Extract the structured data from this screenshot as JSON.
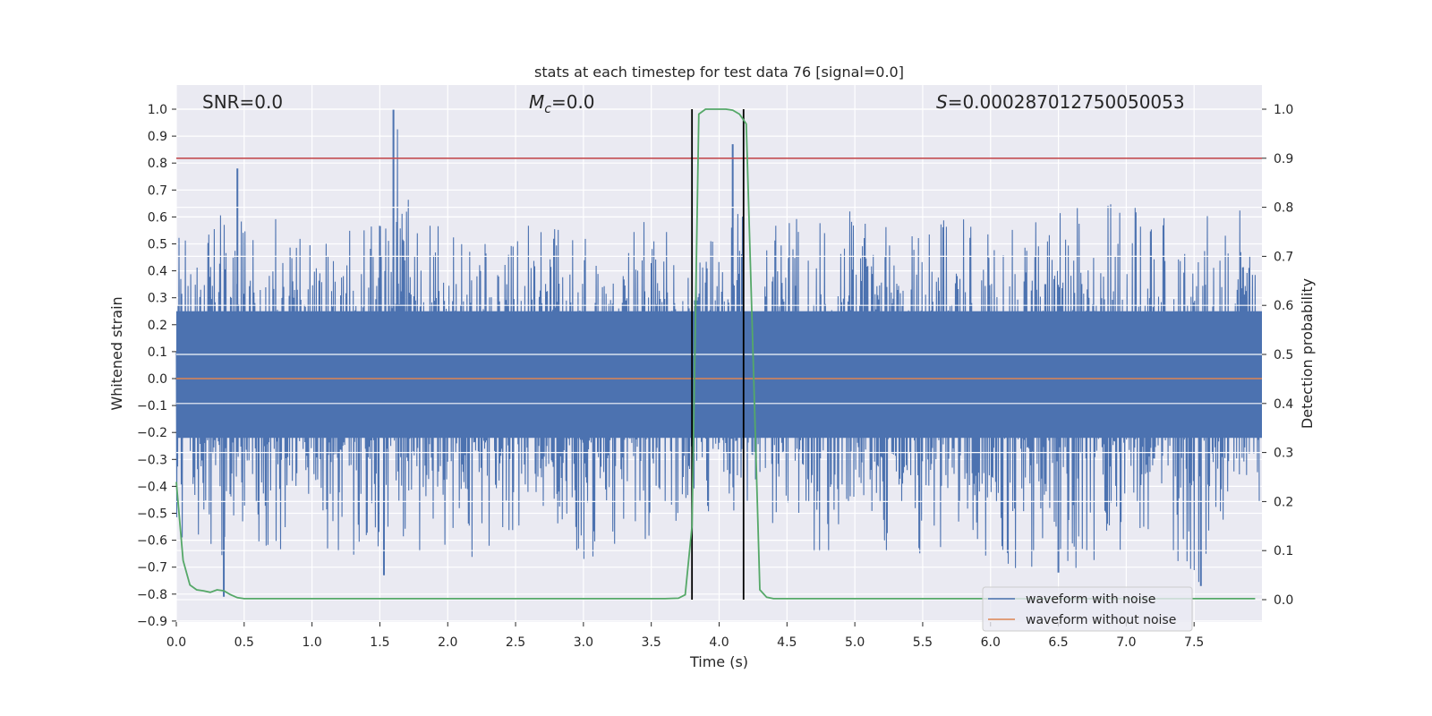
{
  "chart_data": {
    "type": "line",
    "title": "stats at each timestep for test data 76 [signal=0.0]",
    "xlabel": "Time (s)",
    "ylabel": "Whitened strain",
    "y2label": "Detection probability",
    "xlim": [
      0.0,
      8.0
    ],
    "ylim": [
      -0.9,
      1.0
    ],
    "y2lim": [
      0.0,
      1.0
    ],
    "x_ticks": [
      0.0,
      0.5,
      1.0,
      1.5,
      2.0,
      2.5,
      3.0,
      3.5,
      4.0,
      4.5,
      5.0,
      5.5,
      6.0,
      6.5,
      7.0,
      7.5
    ],
    "x_tick_labels": [
      "0.0",
      "0.5",
      "1.0",
      "1.5",
      "2.0",
      "2.5",
      "3.0",
      "3.5",
      "4.0",
      "4.5",
      "5.0",
      "5.5",
      "6.0",
      "6.5",
      "7.0",
      "7.5"
    ],
    "y_ticks": [
      1.0,
      0.9,
      0.8,
      0.7,
      0.6,
      0.5,
      0.4,
      0.3,
      0.2,
      0.1,
      0.0,
      -0.1,
      -0.2,
      -0.3,
      -0.4,
      -0.5,
      -0.6,
      -0.7,
      -0.8,
      -0.9
    ],
    "y_tick_labels": [
      "1.0",
      "0.9",
      "0.8",
      "0.7",
      "0.6",
      "0.5",
      "0.4",
      "0.3",
      "0.2",
      "0.1",
      "0.0",
      "−0.1",
      "−0.2",
      "−0.3",
      "−0.4",
      "−0.5",
      "−0.6",
      "−0.7",
      "−0.8",
      "−0.9"
    ],
    "y2_ticks": [
      1.0,
      0.9,
      0.8,
      0.7,
      0.6,
      0.5,
      0.4,
      0.3,
      0.2,
      0.1,
      0.0
    ],
    "y2_tick_labels": [
      "1.0",
      "0.9",
      "0.8",
      "0.7",
      "0.6",
      "0.5",
      "0.4",
      "0.3",
      "0.2",
      "0.1",
      "0.0"
    ],
    "grid": true,
    "annotations": {
      "snr": "SNR=0.0",
      "mc_symbol": "M",
      "mc_subscript": "c",
      "mc_value": "=0.0",
      "s_symbol": "S",
      "s_value": "=0.000287012750050053"
    },
    "threshold_line": {
      "y2": 0.9,
      "color": "#c44e52"
    },
    "vertical_lines": [
      3.8,
      4.18
    ],
    "series": [
      {
        "name": "waveform with noise",
        "color": "#4c72b0",
        "axis": "left",
        "envelope": {
          "x": [
            0.0,
            0.5,
            1.0,
            1.5,
            1.6,
            2.0,
            2.5,
            3.0,
            3.5,
            3.7,
            3.8,
            4.0,
            4.1,
            4.2,
            4.5,
            5.0,
            5.5,
            6.0,
            6.5,
            7.0,
            7.5,
            8.0
          ],
          "upper": [
            0.6,
            0.62,
            0.58,
            0.6,
            1.0,
            0.58,
            0.57,
            0.56,
            0.6,
            0.63,
            0.55,
            0.54,
            0.87,
            0.55,
            0.62,
            0.63,
            0.6,
            0.6,
            0.65,
            0.65,
            0.62,
            0.63
          ],
          "lower": [
            -0.6,
            -0.7,
            -0.65,
            -0.73,
            -0.6,
            -0.7,
            -0.63,
            -0.7,
            -0.6,
            -0.62,
            -0.58,
            -0.5,
            -0.55,
            -0.5,
            -0.6,
            -0.75,
            -0.65,
            -0.7,
            -0.72,
            -0.68,
            -0.77,
            -0.6
          ]
        },
        "peak_spikes": [
          {
            "x": 0.45,
            "y": 0.78
          },
          {
            "x": 1.6,
            "y": 1.0
          },
          {
            "x": 4.1,
            "y": 0.87
          },
          {
            "x": 0.35,
            "y": -0.81
          },
          {
            "x": 1.53,
            "y": -0.73
          },
          {
            "x": 6.5,
            "y": -0.72
          },
          {
            "x": 7.55,
            "y": -0.77
          }
        ]
      },
      {
        "name": "waveform without noise",
        "color": "#dd8452",
        "axis": "left",
        "x": [
          0.0,
          8.0
        ],
        "y": [
          0.0,
          0.0
        ]
      },
      {
        "name": "detection probability",
        "color": "#55a868",
        "axis": "right",
        "x": [
          0.0,
          0.05,
          0.1,
          0.15,
          0.2,
          0.25,
          0.3,
          0.35,
          0.4,
          0.45,
          0.5,
          1.0,
          2.0,
          3.0,
          3.5,
          3.6,
          3.7,
          3.75,
          3.8,
          3.85,
          3.9,
          3.95,
          4.0,
          4.05,
          4.1,
          4.15,
          4.2,
          4.25,
          4.3,
          4.35,
          4.4,
          4.5,
          5.0,
          6.0,
          7.0,
          7.95
        ],
        "y": [
          0.24,
          0.08,
          0.03,
          0.02,
          0.018,
          0.015,
          0.02,
          0.018,
          0.01,
          0.004,
          0.002,
          0.002,
          0.002,
          0.002,
          0.002,
          0.002,
          0.003,
          0.01,
          0.15,
          0.99,
          1.0,
          1.0,
          1.0,
          1.0,
          0.998,
          0.99,
          0.97,
          0.5,
          0.02,
          0.005,
          0.002,
          0.002,
          0.002,
          0.002,
          0.002,
          0.002
        ]
      }
    ],
    "legend": {
      "position": "lower-right",
      "entries": [
        {
          "label": "waveform with noise",
          "color": "#4c72b0"
        },
        {
          "label": "waveform without noise",
          "color": "#dd8452"
        }
      ]
    }
  }
}
